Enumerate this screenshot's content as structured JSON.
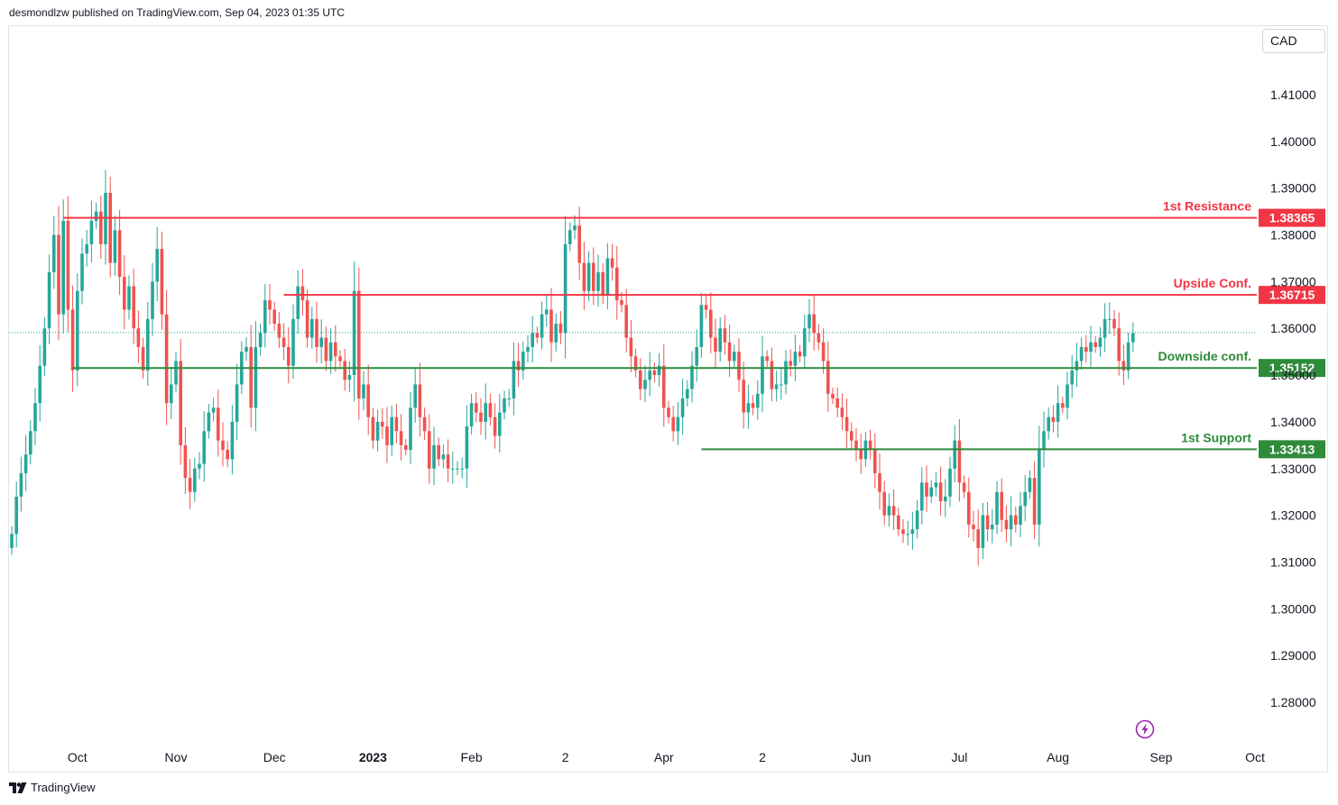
{
  "header": {
    "text": "desmondlzw published on TradingView.com, Sep 04, 2023 01:35 UTC"
  },
  "currency": "CAD",
  "footer": {
    "brand": "TradingView"
  },
  "icons": {
    "bolt": "lightning-bolt-icon",
    "logo": "tradingview-logo-icon"
  },
  "colors": {
    "up": "#26a69a",
    "down": "#ef5350",
    "resistance": "#f23645",
    "support": "#2e8b3a"
  },
  "chart_data": {
    "type": "candlestick",
    "ylim": [
      1.27,
      1.42
    ],
    "yticks": [
      "1.41000",
      "1.40000",
      "1.39000",
      "1.38000",
      "1.37000",
      "1.36000",
      "1.35000",
      "1.34000",
      "1.33000",
      "1.32000",
      "1.31000",
      "1.30000",
      "1.29000",
      "1.28000"
    ],
    "xticks": [
      {
        "label": "Oct",
        "i": 14,
        "bold": false
      },
      {
        "label": "Nov",
        "i": 35,
        "bold": false
      },
      {
        "label": "Dec",
        "i": 56,
        "bold": false
      },
      {
        "label": "2023",
        "i": 77,
        "bold": true
      },
      {
        "label": "Feb",
        "i": 98,
        "bold": false
      },
      {
        "label": "2",
        "i": 118,
        "bold": false
      },
      {
        "label": "Apr",
        "i": 139,
        "bold": false
      },
      {
        "label": "2",
        "i": 160,
        "bold": false
      },
      {
        "label": "Jun",
        "i": 181,
        "bold": false
      },
      {
        "label": "Jul",
        "i": 202,
        "bold": false
      },
      {
        "label": "Aug",
        "i": 223,
        "bold": false
      },
      {
        "label": "Sep",
        "i": 245,
        "bold": false
      },
      {
        "label": "Oct",
        "i": 265,
        "bold": false
      }
    ],
    "levels": [
      {
        "name": "1st Resistance",
        "value": 1.38365,
        "label": "1.38365",
        "color": "#f23645",
        "from": 11
      },
      {
        "name": "Upside Conf.",
        "value": 1.36715,
        "label": "1.36715",
        "color": "#f23645",
        "from": 58
      },
      {
        "name": "Downside conf.",
        "value": 1.35152,
        "label": "1.35152",
        "color": "#2e8b3a",
        "from": 13
      },
      {
        "name": "1st Support",
        "value": 1.33413,
        "label": "1.33413",
        "color": "#2e8b3a",
        "from": 147
      }
    ],
    "last_price": 1.3591,
    "closes": [
      1.316,
      1.324,
      1.329,
      1.333,
      1.338,
      1.344,
      1.352,
      1.36,
      1.372,
      1.38,
      1.363,
      1.383,
      1.364,
      1.351,
      1.368,
      1.376,
      1.378,
      1.383,
      1.385,
      1.378,
      1.389,
      1.374,
      1.381,
      1.371,
      1.364,
      1.369,
      1.36,
      1.356,
      1.351,
      1.362,
      1.37,
      1.377,
      1.363,
      1.344,
      1.348,
      1.353,
      1.335,
      1.328,
      1.325,
      1.33,
      1.331,
      1.338,
      1.342,
      1.343,
      1.336,
      1.334,
      1.332,
      1.34,
      1.348,
      1.355,
      1.356,
      1.343,
      1.356,
      1.359,
      1.366,
      1.364,
      1.361,
      1.358,
      1.356,
      1.352,
      1.362,
      1.369,
      1.366,
      1.358,
      1.362,
      1.356,
      1.358,
      1.353,
      1.357,
      1.354,
      1.353,
      1.349,
      1.35,
      1.368,
      1.345,
      1.348,
      1.341,
      1.336,
      1.34,
      1.339,
      1.335,
      1.341,
      1.338,
      1.335,
      1.334,
      1.343,
      1.348,
      1.341,
      1.338,
      1.33,
      1.335,
      1.332,
      1.333,
      1.33,
      1.33,
      1.33,
      1.33,
      1.339,
      1.344,
      1.342,
      1.34,
      1.344,
      1.341,
      1.337,
      1.342,
      1.345,
      1.345,
      1.353,
      1.351,
      1.355,
      1.356,
      1.359,
      1.358,
      1.363,
      1.364,
      1.357,
      1.361,
      1.359,
      1.378,
      1.381,
      1.382,
      1.374,
      1.368,
      1.374,
      1.368,
      1.372,
      1.367,
      1.375,
      1.373,
      1.366,
      1.365,
      1.358,
      1.354,
      1.351,
      1.347,
      1.349,
      1.351,
      1.35,
      1.352,
      1.343,
      1.341,
      1.338,
      1.341,
      1.345,
      1.347,
      1.352,
      1.356,
      1.365,
      1.364,
      1.358,
      1.355,
      1.36,
      1.357,
      1.353,
      1.355,
      1.349,
      1.342,
      1.344,
      1.343,
      1.346,
      1.354,
      1.353,
      1.347,
      1.348,
      1.348,
      1.353,
      1.352,
      1.355,
      1.354,
      1.36,
      1.363,
      1.359,
      1.357,
      1.353,
      1.346,
      1.345,
      1.343,
      1.341,
      1.338,
      1.336,
      1.334,
      1.332,
      1.336,
      1.334,
      1.329,
      1.325,
      1.32,
      1.322,
      1.32,
      1.317,
      1.316,
      1.316,
      1.317,
      1.321,
      1.327,
      1.324,
      1.326,
      1.327,
      1.323,
      1.324,
      1.33,
      1.336,
      1.327,
      1.325,
      1.318,
      1.317,
      1.313,
      1.32,
      1.317,
      1.318,
      1.325,
      1.319,
      1.317,
      1.32,
      1.318,
      1.322,
      1.325,
      1.328,
      1.318,
      1.334,
      1.338,
      1.341,
      1.34,
      1.344,
      1.343,
      1.348,
      1.351,
      1.353,
      1.356,
      1.355,
      1.357,
      1.356,
      1.358,
      1.362,
      1.362,
      1.36,
      1.353,
      1.351,
      1.357,
      1.359
    ]
  }
}
